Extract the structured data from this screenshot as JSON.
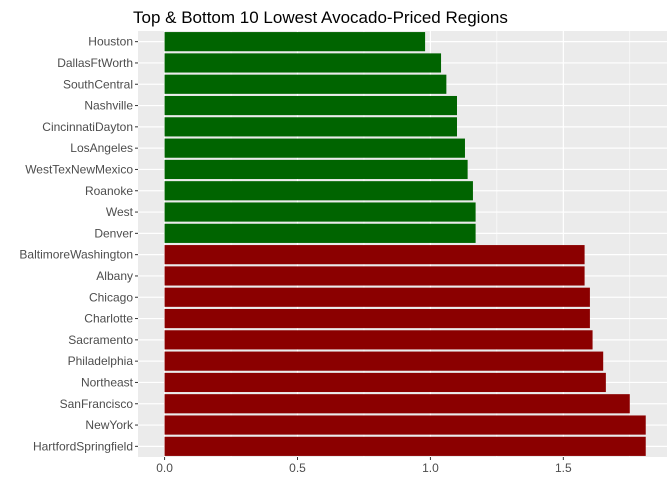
{
  "chart_data": {
    "type": "bar",
    "orientation": "horizontal",
    "title": "Top & Bottom 10 Lowest Avocado-Priced Regions",
    "xlabel": "",
    "ylabel": "",
    "xlim": [
      -0.1,
      1.89
    ],
    "xticks": [
      0.0,
      0.5,
      1.0,
      1.5
    ],
    "xtick_labels": [
      "0.0",
      "0.5",
      "1.0",
      "1.5"
    ],
    "grid": true,
    "legend": "none",
    "colors": {
      "lowest": "#006400",
      "highest": "#8B0000"
    },
    "categories": [
      "Houston",
      "DallasFtWorth",
      "SouthCentral",
      "Nashville",
      "CincinnatiDayton",
      "LosAngeles",
      "WestTexNewMexico",
      "Roanoke",
      "West",
      "Denver",
      "BaltimoreWashington",
      "Albany",
      "Chicago",
      "Charlotte",
      "Sacramento",
      "Philadelphia",
      "Northeast",
      "SanFrancisco",
      "NewYork",
      "HartfordSpringfield"
    ],
    "values": [
      0.98,
      1.04,
      1.06,
      1.1,
      1.1,
      1.13,
      1.14,
      1.16,
      1.17,
      1.17,
      1.58,
      1.58,
      1.6,
      1.6,
      1.61,
      1.65,
      1.66,
      1.75,
      1.81,
      1.81
    ],
    "groups": [
      "lowest",
      "lowest",
      "lowest",
      "lowest",
      "lowest",
      "lowest",
      "lowest",
      "lowest",
      "lowest",
      "lowest",
      "highest",
      "highest",
      "highest",
      "highest",
      "highest",
      "highest",
      "highest",
      "highest",
      "highest",
      "highest"
    ]
  }
}
